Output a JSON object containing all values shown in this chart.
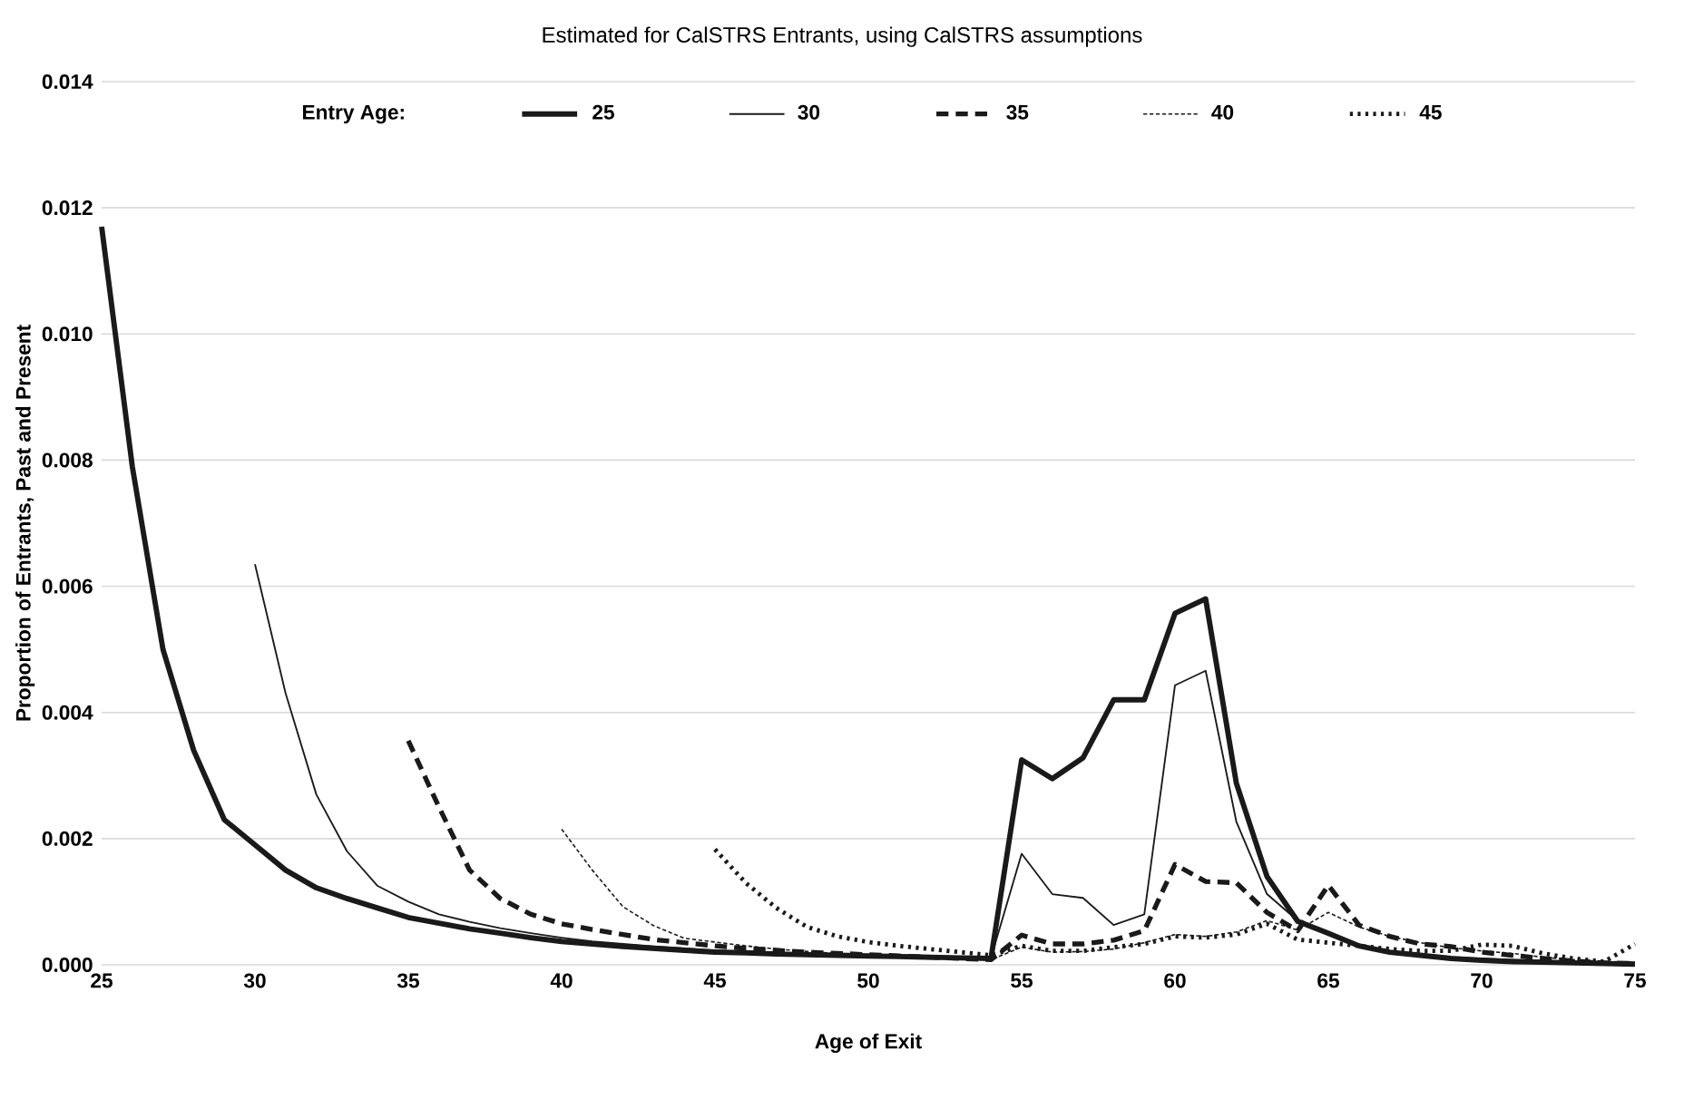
{
  "chart_data": {
    "type": "line",
    "title": "Estimated for CalSTRS Entrants, using CalSTRS assumptions",
    "xlabel": "Age of Exit",
    "ylabel": "Proportion of Entrants, Past and Present",
    "legend_title": "Entry Age:",
    "x": [
      25,
      26,
      27,
      28,
      29,
      30,
      31,
      32,
      33,
      34,
      35,
      36,
      37,
      38,
      39,
      40,
      41,
      42,
      43,
      44,
      45,
      46,
      47,
      48,
      49,
      50,
      51,
      52,
      53,
      54,
      55,
      56,
      57,
      58,
      59,
      60,
      61,
      62,
      63,
      64,
      65,
      66,
      67,
      68,
      69,
      70,
      71,
      72,
      73,
      74,
      75
    ],
    "series": [
      {
        "name": "25",
        "color": "#1a1a1a",
        "line_style": "solid",
        "values": [
          0.0117,
          0.0079,
          0.005,
          0.0034,
          0.0023,
          0.0019,
          0.0015,
          0.00122,
          0.00105,
          0.0009,
          0.00075,
          0.00066,
          0.00057,
          0.0005,
          0.00043,
          0.00037,
          0.00033,
          0.00029,
          0.00026,
          0.00023,
          0.0002,
          0.00019,
          0.00017,
          0.00016,
          0.00015,
          0.00014,
          0.00013,
          0.00012,
          0.00011,
          0.0001,
          0.00325,
          0.00295,
          0.00328,
          0.0042,
          0.0042,
          0.00557,
          0.0058,
          0.00288,
          0.0014,
          0.00069,
          0.0005,
          0.0003,
          0.0002,
          0.00015,
          0.0001,
          7e-05,
          5e-05,
          4e-05,
          3e-05,
          2e-05,
          1e-05
        ]
      },
      {
        "name": "30",
        "color": "#1a1a1a",
        "line_style": "solid",
        "values": [
          null,
          null,
          null,
          null,
          null,
          0.00635,
          0.0043,
          0.0027,
          0.0018,
          0.00125,
          0.001,
          0.0008,
          0.00068,
          0.00058,
          0.0005,
          0.00043,
          0.00037,
          0.00033,
          0.00029,
          0.00026,
          0.00023,
          0.0002,
          0.00018,
          0.00017,
          0.00016,
          0.00015,
          0.00014,
          0.00013,
          0.00012,
          0.00011,
          0.00176,
          0.00112,
          0.00106,
          0.00063,
          0.0008,
          0.00443,
          0.00466,
          0.00227,
          0.00112,
          0.0007,
          0.0005,
          0.0003,
          0.00022,
          0.00016,
          0.00012,
          0.0001,
          8e-05,
          6e-05,
          4e-05,
          3e-05,
          2e-05
        ]
      },
      {
        "name": "35",
        "color": "#1a1a1a",
        "line_style": "dashed",
        "values": [
          null,
          null,
          null,
          null,
          null,
          null,
          null,
          null,
          null,
          null,
          0.00355,
          0.0025,
          0.0015,
          0.00105,
          0.0008,
          0.00065,
          0.00056,
          0.00048,
          0.0004,
          0.00035,
          0.0003,
          0.00026,
          0.00023,
          0.0002,
          0.00018,
          0.00016,
          0.00014,
          0.00012,
          0.0001,
          8e-05,
          0.00047,
          0.00033,
          0.00033,
          0.00039,
          0.00054,
          0.00159,
          0.00132,
          0.0013,
          0.00083,
          0.00054,
          0.00126,
          0.00063,
          0.00045,
          0.00033,
          0.00029,
          0.0002,
          0.00015,
          0.0001,
          6e-05,
          3e-05,
          2e-05
        ]
      },
      {
        "name": "40",
        "color": "#1a1a1a",
        "line_style": "dashed",
        "values": [
          null,
          null,
          null,
          null,
          null,
          null,
          null,
          null,
          null,
          null,
          null,
          null,
          null,
          null,
          null,
          0.00215,
          0.0015,
          0.00092,
          0.00062,
          0.00042,
          0.00036,
          0.0003,
          0.00025,
          0.00021,
          0.00018,
          0.00015,
          0.00013,
          0.00011,
          0.0001,
          8e-05,
          0.00028,
          0.0002,
          0.00021,
          0.00025,
          0.00035,
          0.00048,
          0.00045,
          0.00052,
          0.0007,
          0.00055,
          0.00083,
          0.0006,
          0.00045,
          0.00035,
          0.00027,
          0.00022,
          0.00018,
          0.00012,
          8e-05,
          5e-05,
          4e-05
        ]
      },
      {
        "name": "45",
        "color": "#1a1a1a",
        "line_style": "dotted",
        "values": [
          null,
          null,
          null,
          null,
          null,
          null,
          null,
          null,
          null,
          null,
          null,
          null,
          null,
          null,
          null,
          null,
          null,
          null,
          null,
          null,
          0.00183,
          0.0013,
          0.0009,
          0.0006,
          0.00045,
          0.00036,
          0.0003,
          0.00025,
          0.0002,
          0.00015,
          0.0003,
          0.00022,
          0.00022,
          0.00028,
          0.00033,
          0.00045,
          0.00043,
          0.00048,
          0.00065,
          0.0004,
          0.00035,
          0.0003,
          0.00025,
          0.00022,
          0.00022,
          0.00032,
          0.0003,
          0.00018,
          0.0001,
          5e-05,
          0.00033
        ]
      }
    ],
    "xlim": [
      25,
      75
    ],
    "xticks": [
      25,
      30,
      35,
      40,
      45,
      50,
      55,
      60,
      65,
      70,
      75
    ],
    "ylim": [
      0,
      0.014
    ],
    "yticks": [
      {
        "value": 0,
        "label": "0.000"
      },
      {
        "value": 0.002,
        "label": "0.002"
      },
      {
        "value": 0.004,
        "label": "0.004"
      },
      {
        "value": 0.006,
        "label": "0.006"
      },
      {
        "value": 0.008,
        "label": "0.008"
      },
      {
        "value": 0.01,
        "label": "0.010"
      },
      {
        "value": 0.012,
        "label": "0.012"
      },
      {
        "value": 0.014,
        "label": "0.014"
      }
    ],
    "grid": "y",
    "legend": "top",
    "marker": "none"
  }
}
